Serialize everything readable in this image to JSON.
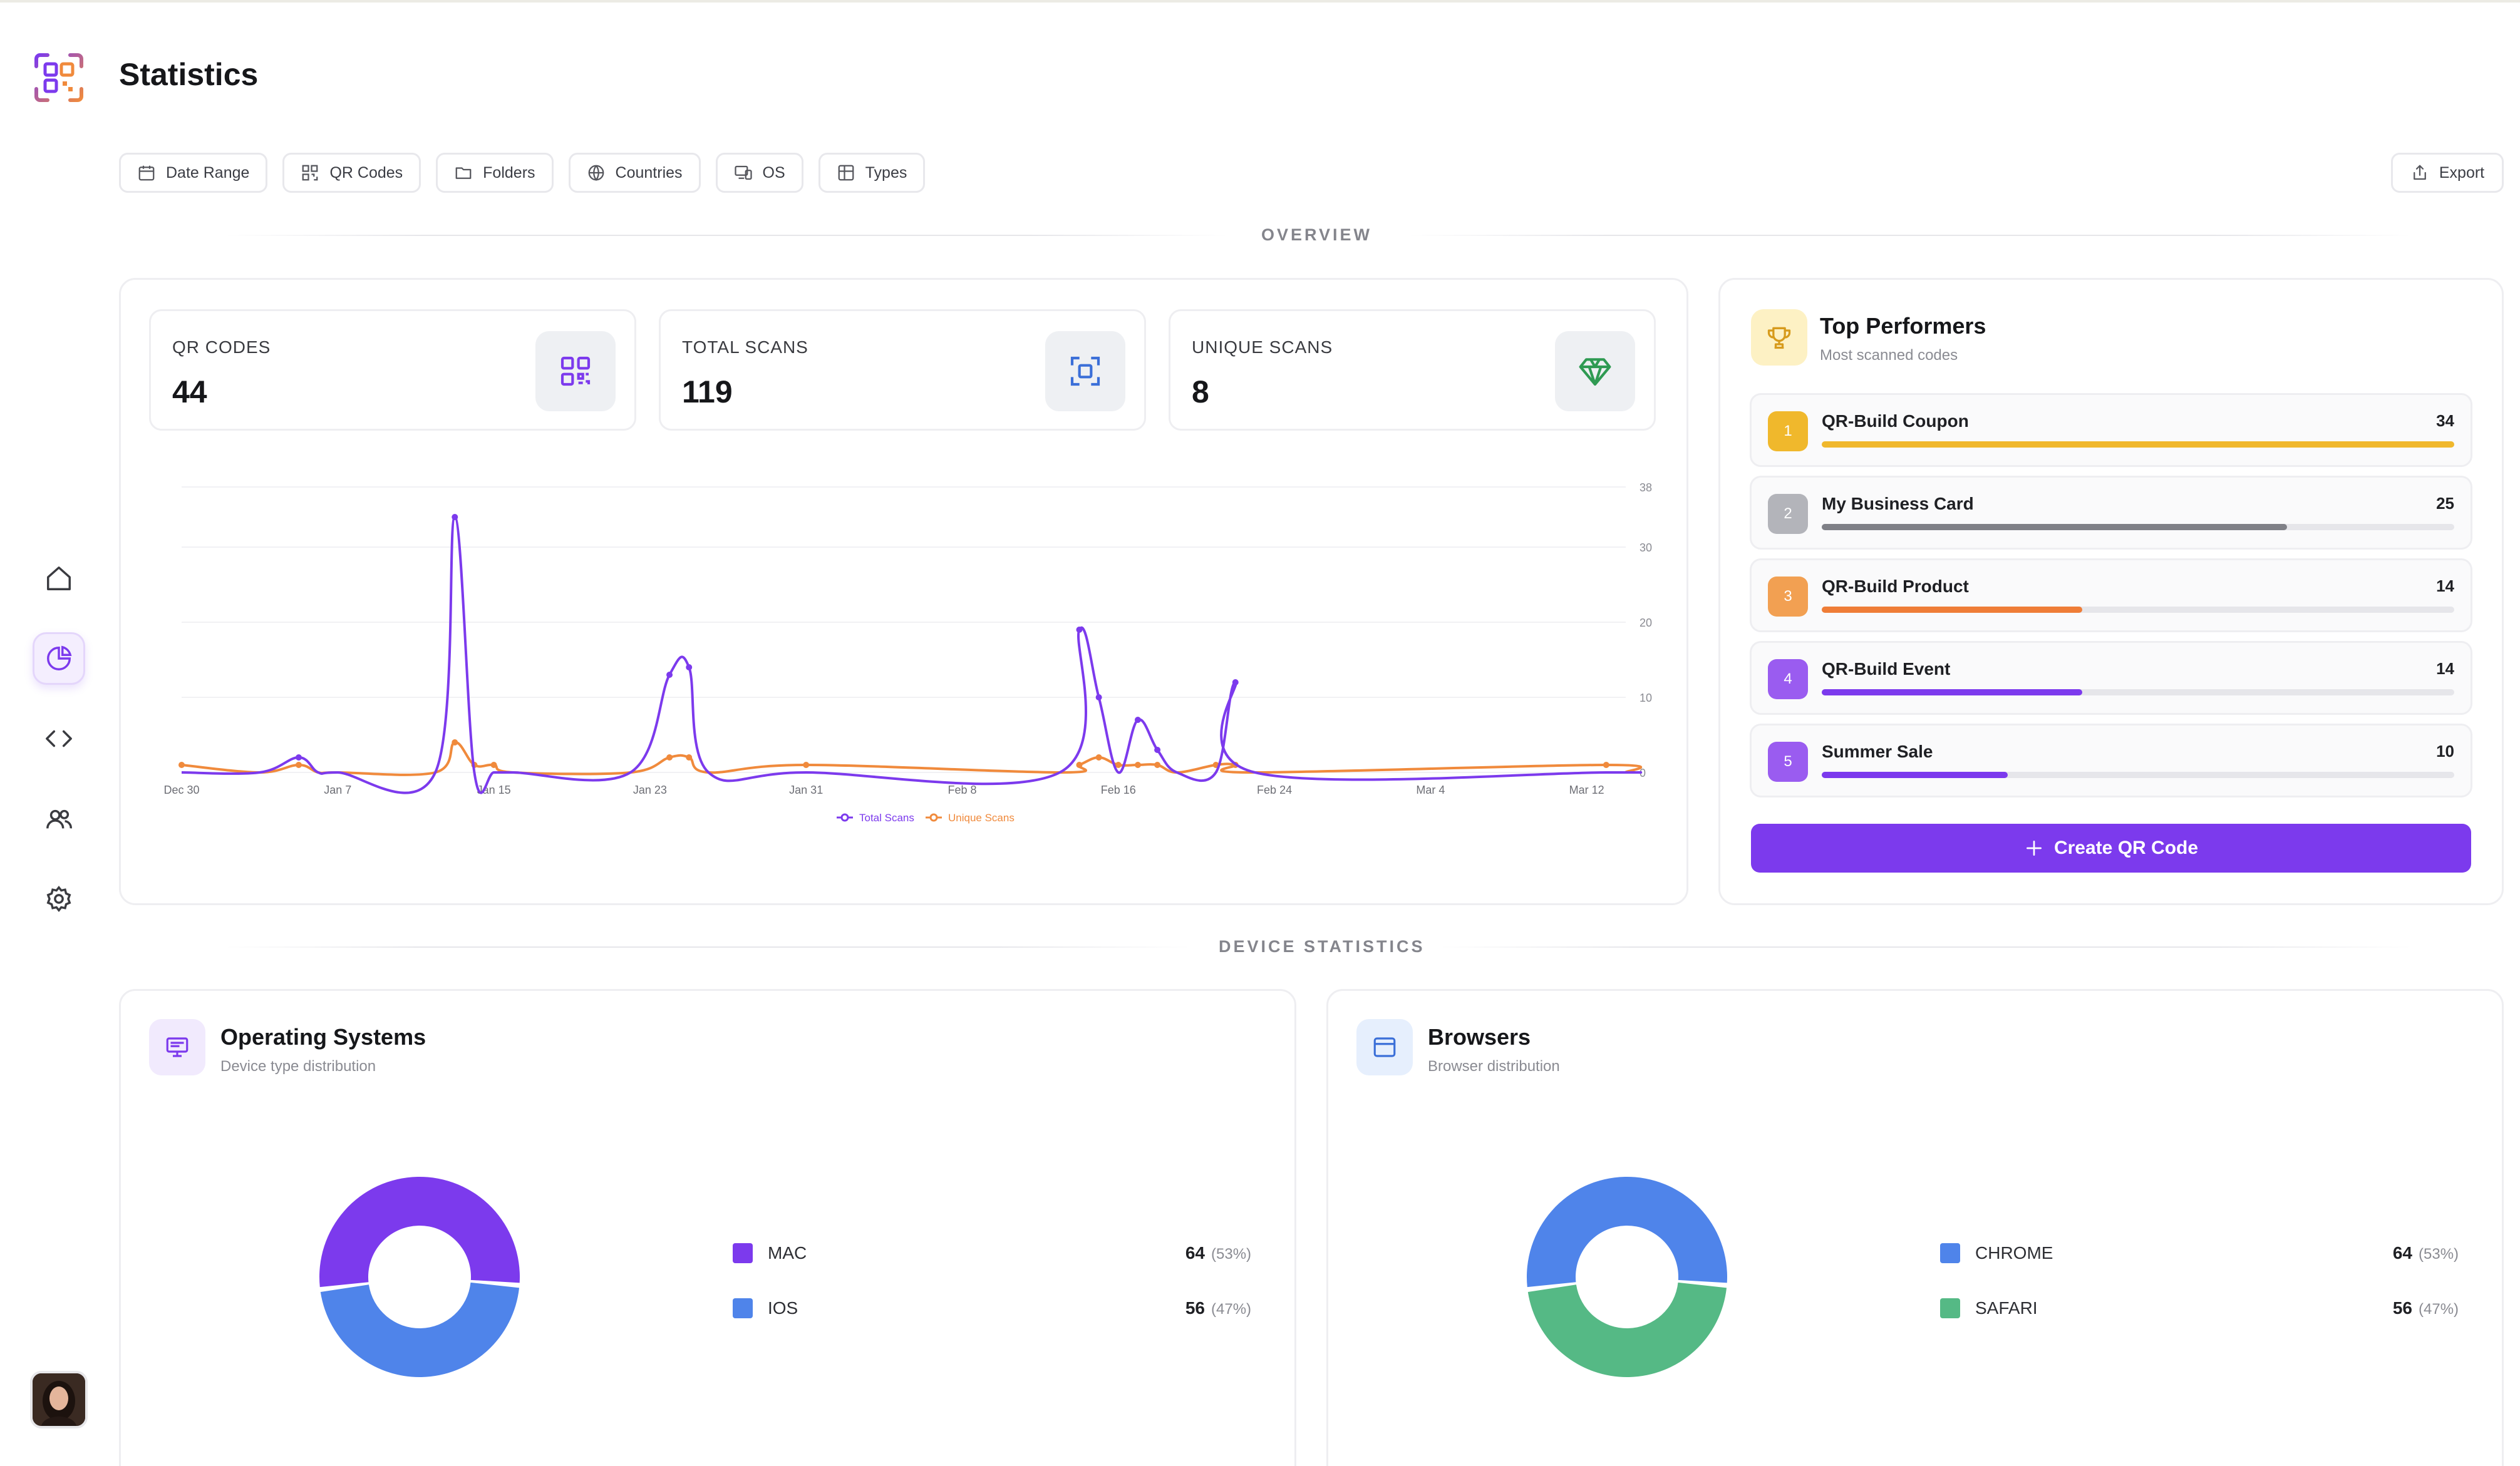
{
  "page": {
    "title": "Statistics"
  },
  "sidebar": {
    "items": [
      {
        "name": "home-icon"
      },
      {
        "name": "pie-chart-icon",
        "active": true
      },
      {
        "name": "code-icon"
      },
      {
        "name": "users-icon"
      },
      {
        "name": "gear-icon"
      }
    ]
  },
  "filters": [
    {
      "label": "Date Range",
      "icon": "calendar-icon"
    },
    {
      "label": "QR Codes",
      "icon": "qr-icon"
    },
    {
      "label": "Folders",
      "icon": "folder-icon"
    },
    {
      "label": "Countries",
      "icon": "globe-icon"
    },
    {
      "label": "OS",
      "icon": "devices-icon"
    },
    {
      "label": "Types",
      "icon": "grid-icon"
    }
  ],
  "export_label": "Export",
  "overview": {
    "label": "OVERVIEW",
    "stats": [
      {
        "label": "QR CODES",
        "value": "44",
        "icon": "qr-icon",
        "color": "#7c3aed"
      },
      {
        "label": "TOTAL SCANS",
        "value": "119",
        "icon": "scan-icon",
        "color": "#3b6fd8"
      },
      {
        "label": "UNIQUE SCANS",
        "value": "8",
        "icon": "diamond-icon",
        "color": "#2f9a52"
      }
    ]
  },
  "chart_data": {
    "type": "line",
    "x_ticks": [
      "Dec 30",
      "Jan 7",
      "Jan 15",
      "Jan 23",
      "Jan 31",
      "Feb 8",
      "Feb 16",
      "Feb 24",
      "Mar 4",
      "Mar 12"
    ],
    "y_ticks": [
      0,
      10,
      20,
      30,
      38
    ],
    "ylim": [
      0,
      38
    ],
    "x": [
      "Dec 30",
      "Jan 3",
      "Jan 5",
      "Jan 6",
      "Jan 7",
      "Jan 12",
      "Jan 13",
      "Jan 14",
      "Jan 15",
      "Jan 16",
      "Jan 22",
      "Jan 24",
      "Jan 25",
      "Jan 26",
      "Jan 31",
      "Feb 13",
      "Feb 14",
      "Feb 15",
      "Feb 16",
      "Feb 17",
      "Feb 18",
      "Feb 19",
      "Feb 21",
      "Feb 22",
      "Feb 23",
      "Mar 13",
      "Mar 14"
    ],
    "series": [
      {
        "name": "Total Scans",
        "color": "#7c3aed",
        "values": [
          0,
          0,
          2,
          0,
          0,
          0,
          34,
          0,
          0,
          0,
          0,
          13,
          14,
          0,
          0,
          0,
          19,
          10,
          0,
          7,
          3,
          0,
          0,
          12,
          0,
          0,
          0
        ]
      },
      {
        "name": "Unique Scans",
        "color": "#f08a3c",
        "values": [
          1,
          0,
          1,
          0,
          0,
          0,
          4,
          1,
          1,
          0,
          0,
          2,
          2,
          0,
          1,
          0,
          1,
          2,
          1,
          1,
          1,
          0,
          1,
          1,
          0,
          1,
          0
        ]
      }
    ]
  },
  "top_performers": {
    "title": "Top Performers",
    "subtitle": "Most scanned codes",
    "icon": "trophy-icon",
    "items": [
      {
        "rank": "1",
        "name": "QR-Build Coupon",
        "count": "34",
        "value": 34,
        "color": "#f0b82c",
        "bar": "#f0b82c"
      },
      {
        "rank": "2",
        "name": "My Business Card",
        "count": "25",
        "value": 25,
        "color": "#b3b4ba",
        "bar": "#7f8087"
      },
      {
        "rank": "3",
        "name": "QR-Build Product",
        "count": "14",
        "value": 14,
        "color": "#f2a052",
        "bar": "#ef7d37"
      },
      {
        "rank": "4",
        "name": "QR-Build Event",
        "count": "14",
        "value": 14,
        "color": "#9a5cf0",
        "bar": "#7c3aed"
      },
      {
        "rank": "5",
        "name": "Summer Sale",
        "count": "10",
        "value": 10,
        "color": "#9a5cf0",
        "bar": "#7c3aed"
      }
    ],
    "max": 34,
    "create_label": "Create QR Code"
  },
  "device": {
    "label": "DEVICE STATISTICS",
    "os": {
      "title": "Operating Systems",
      "subtitle": "Device type distribution",
      "icon": "monitor-icon",
      "segments": [
        {
          "name": "MAC",
          "value": "64",
          "pct": "(53%)",
          "n": 64,
          "color": "#7c3aed"
        },
        {
          "name": "IOS",
          "value": "56",
          "pct": "(47%)",
          "n": 56,
          "color": "#4f84ea"
        }
      ]
    },
    "browsers": {
      "title": "Browsers",
      "subtitle": "Browser distribution",
      "icon": "browser-icon",
      "segments": [
        {
          "name": "CHROME",
          "value": "64",
          "pct": "(53%)",
          "n": 64,
          "color": "#4f84ea"
        },
        {
          "name": "SAFARI",
          "value": "56",
          "pct": "(47%)",
          "n": 56,
          "color": "#55b985"
        }
      ]
    }
  }
}
